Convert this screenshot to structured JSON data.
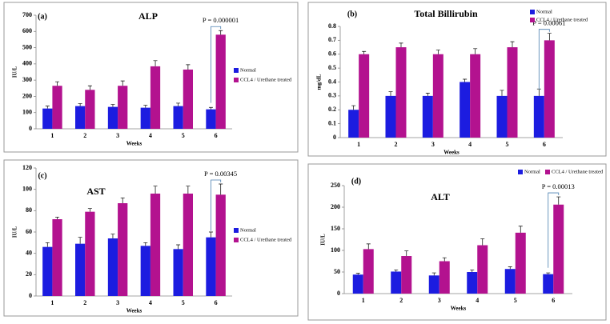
{
  "chart_data": [
    {
      "type": "bar",
      "panel_label": "(a)",
      "title": "ALP",
      "ylabel": "IU/L",
      "xlabel": "Weeks",
      "annotation": "P = 0.000001",
      "categories": [
        "1",
        "2",
        "3",
        "4",
        "5",
        "6"
      ],
      "legend": "right",
      "series": [
        {
          "name": "Normal",
          "color": "#1c1ce0",
          "values": [
            125,
            140,
            135,
            130,
            140,
            120
          ],
          "errors": [
            15,
            15,
            15,
            15,
            18,
            12
          ]
        },
        {
          "name": "CCL4 / Urethane treated",
          "color": "#b3128f",
          "values": [
            265,
            240,
            265,
            385,
            365,
            580
          ],
          "errors": [
            25,
            25,
            30,
            35,
            30,
            25
          ]
        }
      ],
      "ylim": [
        0,
        700
      ],
      "yticks": [
        0,
        100,
        200,
        300,
        400,
        500,
        600,
        700
      ]
    },
    {
      "type": "bar",
      "panel_label": "(b)",
      "title": "Total Billirubin",
      "ylabel": "mg/dL",
      "xlabel": "Weeks",
      "annotation": "P = 0.00061",
      "categories": [
        "1",
        "2",
        "3",
        "4",
        "5",
        "6"
      ],
      "legend": "top-right",
      "series": [
        {
          "name": "Normal",
          "color": "#1c1ce0",
          "values": [
            0.2,
            0.3,
            0.3,
            0.4,
            0.3,
            0.3
          ],
          "errors": [
            0.03,
            0.03,
            0.02,
            0.02,
            0.04,
            0.05
          ]
        },
        {
          "name": "CCL4 / Urethane treated",
          "color": "#b3128f",
          "values": [
            0.6,
            0.65,
            0.6,
            0.6,
            0.65,
            0.7
          ],
          "errors": [
            0.02,
            0.03,
            0.03,
            0.04,
            0.04,
            0.05
          ]
        }
      ],
      "ylim": [
        0,
        0.8
      ],
      "yticks": [
        0,
        0.1,
        0.2,
        0.3,
        0.4,
        0.5,
        0.6,
        0.7,
        0.8
      ]
    },
    {
      "type": "bar",
      "panel_label": "(c)",
      "title": "AST",
      "ylabel": "IU/L",
      "xlabel": "Weeks",
      "annotation": "P = 0.00345",
      "categories": [
        "1",
        "2",
        "3",
        "4",
        "5",
        "6"
      ],
      "legend": "right",
      "series": [
        {
          "name": "Normal",
          "color": "#1c1ce0",
          "values": [
            46,
            49,
            54,
            47,
            44,
            55
          ],
          "errors": [
            4,
            6,
            4,
            3,
            4,
            5
          ]
        },
        {
          "name": "CCL4 / Urethane treated",
          "color": "#b3128f",
          "values": [
            72,
            79,
            87,
            96,
            96,
            95
          ],
          "errors": [
            2,
            3,
            5,
            7,
            7,
            10
          ]
        }
      ],
      "ylim": [
        0,
        120
      ],
      "yticks": [
        0,
        20,
        40,
        60,
        80,
        100,
        120
      ]
    },
    {
      "type": "bar",
      "panel_label": "(d)",
      "title": "ALT",
      "ylabel": "IU/L",
      "xlabel": "Weeks",
      "annotation": "P = 0.00013",
      "categories": [
        "1",
        "2",
        "3",
        "4",
        "5",
        "6"
      ],
      "legend": "top",
      "series": [
        {
          "name": "Normal",
          "color": "#1c1ce0",
          "values": [
            44,
            51,
            42,
            50,
            57,
            45
          ],
          "errors": [
            3,
            4,
            6,
            5,
            5,
            3
          ]
        },
        {
          "name": "CCL4 / Urethane treated",
          "color": "#b3128f",
          "values": [
            103,
            87,
            75,
            112,
            141,
            206
          ],
          "errors": [
            12,
            12,
            8,
            15,
            15,
            18
          ]
        }
      ],
      "ylim": [
        0,
        250
      ],
      "yticks": [
        0,
        50,
        100,
        150,
        200,
        250
      ]
    }
  ]
}
